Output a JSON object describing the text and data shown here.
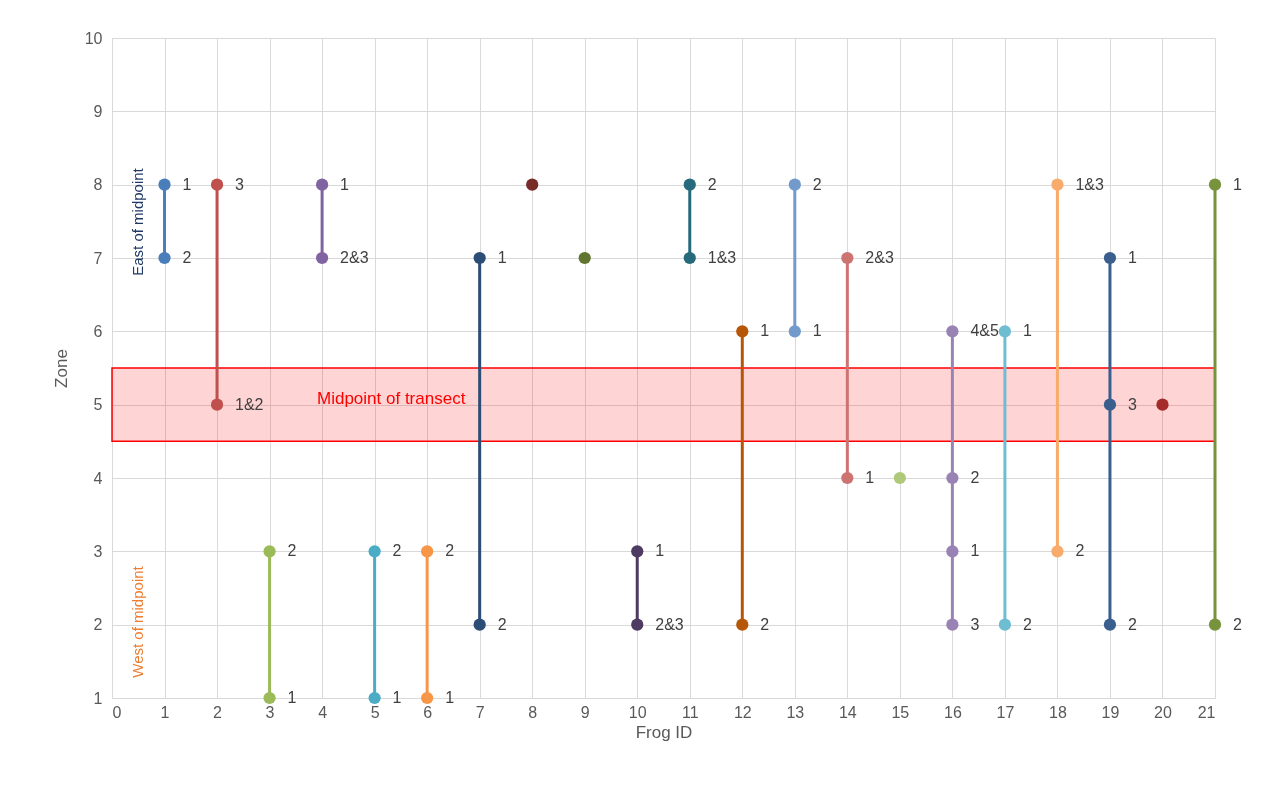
{
  "chart_data": {
    "type": "line",
    "xlabel": "Frog ID",
    "ylabel": "Zone",
    "xlim": [
      0,
      21
    ],
    "ylim": [
      1,
      10
    ],
    "xticks": [
      0,
      1,
      2,
      3,
      4,
      5,
      6,
      7,
      8,
      9,
      10,
      11,
      12,
      13,
      14,
      15,
      16,
      17,
      18,
      19,
      20,
      21
    ],
    "yticks": [
      1,
      2,
      3,
      4,
      5,
      6,
      7,
      8,
      9,
      10
    ],
    "grid": true,
    "legend": false,
    "marker": "circle",
    "line_style": "solid",
    "bands": [
      {
        "axis": "y",
        "from": 4.5,
        "to": 5.5,
        "label": "Midpoint of transect",
        "color": "#ff0000"
      }
    ],
    "annotations": [
      "East of midpoint",
      "West of midpoint",
      {
        "text": "1",
        "x": 1,
        "y": 8
      },
      {
        "text": "2",
        "x": 1,
        "y": 7
      },
      {
        "text": "3",
        "x": 2,
        "y": 8
      },
      {
        "text": "1&2",
        "x": 2,
        "y": 5
      },
      {
        "text": "2",
        "x": 3,
        "y": 3
      },
      {
        "text": "1",
        "x": 3,
        "y": 1
      },
      {
        "text": "1",
        "x": 4,
        "y": 8
      },
      {
        "text": "2&3",
        "x": 4,
        "y": 7
      },
      {
        "text": "2",
        "x": 5,
        "y": 3
      },
      {
        "text": "1",
        "x": 5,
        "y": 1
      },
      {
        "text": "2",
        "x": 6,
        "y": 3
      },
      {
        "text": "1",
        "x": 6,
        "y": 1
      },
      {
        "text": "1",
        "x": 7,
        "y": 7
      },
      {
        "text": "2",
        "x": 7,
        "y": 2
      },
      {
        "text": "1",
        "x": 10,
        "y": 3
      },
      {
        "text": "2&3",
        "x": 10,
        "y": 2
      },
      {
        "text": "2",
        "x": 11,
        "y": 8
      },
      {
        "text": "1&3",
        "x": 11,
        "y": 7
      },
      {
        "text": "1",
        "x": 12,
        "y": 6
      },
      {
        "text": "2",
        "x": 12,
        "y": 2
      },
      {
        "text": "2",
        "x": 13,
        "y": 8
      },
      {
        "text": "1",
        "x": 13,
        "y": 6
      },
      {
        "text": "2&3",
        "x": 14,
        "y": 7
      },
      {
        "text": "1",
        "x": 14,
        "y": 4
      },
      {
        "text": "4&5",
        "x": 16,
        "y": 6
      },
      {
        "text": "2",
        "x": 16,
        "y": 4
      },
      {
        "text": "1",
        "x": 16,
        "y": 3
      },
      {
        "text": "3",
        "x": 16,
        "y": 2
      },
      {
        "text": "1",
        "x": 17,
        "y": 6
      },
      {
        "text": "2",
        "x": 17,
        "y": 2
      },
      {
        "text": "1&3",
        "x": 18,
        "y": 8
      },
      {
        "text": "2",
        "x": 18,
        "y": 3
      },
      {
        "text": "1",
        "x": 19,
        "y": 7
      },
      {
        "text": "3",
        "x": 19,
        "y": 5
      },
      {
        "text": "2",
        "x": 19,
        "y": 2
      },
      {
        "text": "1",
        "x": 21,
        "y": 8
      },
      {
        "text": "2",
        "x": 21,
        "y": 2
      }
    ],
    "series": [
      {
        "color": "#4a7ebb",
        "x": [
          1,
          1
        ],
        "values": [
          8,
          7
        ]
      },
      {
        "color": "#c0504d",
        "x": [
          2,
          2
        ],
        "values": [
          8,
          5
        ]
      },
      {
        "color": "#9bbb59",
        "x": [
          3,
          3
        ],
        "values": [
          3,
          1
        ]
      },
      {
        "color": "#8064a2",
        "x": [
          4,
          4
        ],
        "values": [
          8,
          7
        ]
      },
      {
        "color": "#4bacc6",
        "x": [
          5,
          5
        ],
        "values": [
          3,
          1
        ]
      },
      {
        "color": "#f79646",
        "x": [
          6,
          6
        ],
        "values": [
          3,
          1
        ]
      },
      {
        "color": "#2c4d75",
        "x": [
          7,
          7
        ],
        "values": [
          7,
          2
        ]
      },
      {
        "color": "#772c2a",
        "x": [
          8
        ],
        "values": [
          8
        ]
      },
      {
        "color": "#5f7530",
        "x": [
          9
        ],
        "values": [
          7
        ]
      },
      {
        "color": "#4d3b62",
        "x": [
          10,
          10
        ],
        "values": [
          3,
          2
        ]
      },
      {
        "color": "#276a7c",
        "x": [
          11,
          11
        ],
        "values": [
          8,
          7
        ]
      },
      {
        "color": "#b65708",
        "x": [
          12,
          12
        ],
        "values": [
          6,
          2
        ]
      },
      {
        "color": "#729aca",
        "x": [
          13,
          13
        ],
        "values": [
          8,
          6
        ]
      },
      {
        "color": "#cd7371",
        "x": [
          14,
          14
        ],
        "values": [
          7,
          4
        ]
      },
      {
        "color": "#afc97a",
        "x": [
          15
        ],
        "values": [
          4
        ]
      },
      {
        "color": "#9983b5",
        "x": [
          16,
          16,
          16,
          16
        ],
        "values": [
          6,
          4,
          3,
          2
        ]
      },
      {
        "color": "#6fbdd1",
        "x": [
          17,
          17
        ],
        "values": [
          6,
          2
        ]
      },
      {
        "color": "#f9ab6b",
        "x": [
          18,
          18
        ],
        "values": [
          8,
          3
        ]
      },
      {
        "color": "#3a5f8f",
        "x": [
          19,
          19,
          19
        ],
        "values": [
          7,
          5,
          2
        ]
      },
      {
        "color": "#a52a2a",
        "x": [
          20
        ],
        "values": [
          5
        ]
      },
      {
        "color": "#77933c",
        "x": [
          21,
          21
        ],
        "values": [
          8,
          2
        ]
      }
    ]
  }
}
